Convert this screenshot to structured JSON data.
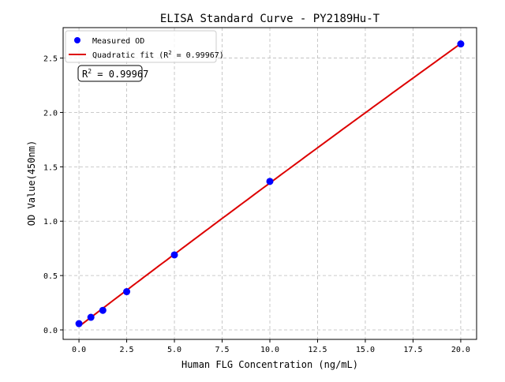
{
  "chart_data": {
    "type": "scatter",
    "title": "ELISA Standard Curve - PY2189Hu-T",
    "xlabel": "Human FLG Concentration (ng/mL)",
    "ylabel": "OD Value(450nm)",
    "xlim": [
      -0.83,
      20.83
    ],
    "ylim": [
      -0.087,
      2.78
    ],
    "xticks": [
      "0.0",
      "2.5",
      "5.0",
      "7.5",
      "10.0",
      "12.5",
      "15.0",
      "17.5",
      "20.0"
    ],
    "yticks": [
      "0.0",
      "0.5",
      "1.0",
      "1.5",
      "2.0",
      "2.5"
    ],
    "grid": true,
    "legend_placement": "top-left",
    "series": [
      {
        "name": "Measured OD",
        "kind": "scatter",
        "color": "#0000ff",
        "x": [
          0,
          0.625,
          1.25,
          2.5,
          5,
          10,
          20
        ],
        "y": [
          0.058,
          0.116,
          0.18,
          0.352,
          0.69,
          1.366,
          2.63
        ]
      },
      {
        "name": "Quadratic fit (R² = 0.99967)",
        "legend_main": "Quadratic fit (R",
        "legend_sup": "2",
        "legend_tail": " = 0.99967)",
        "kind": "line",
        "color": "#dd0000"
      }
    ],
    "annotation": {
      "main": "R",
      "sup": "2",
      "tail": " = 0.99967"
    }
  }
}
